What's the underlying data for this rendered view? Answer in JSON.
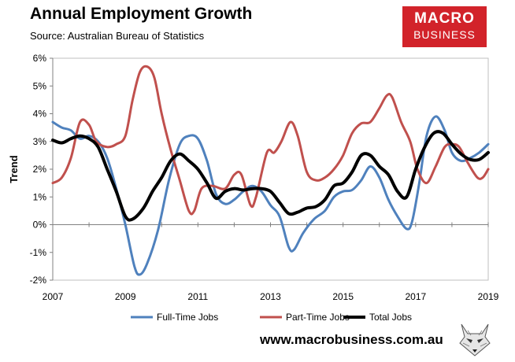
{
  "header": {
    "title": "Annual Employment Growth",
    "subtitle": "Source: Australian Bureau of Statistics",
    "logo_top": "MACRO",
    "logo_bottom": "BUSINESS"
  },
  "footer": {
    "url": "www.macrobusiness.com.au"
  },
  "colors": {
    "full_time": "#4f81bd",
    "part_time": "#c0504d",
    "total": "#000000",
    "logo_bg": "#d2232a"
  },
  "chart_data": {
    "type": "line",
    "title": "Annual Employment Growth",
    "subtitle": "Source: Australian Bureau of Statistics",
    "ylabel": "Trend",
    "xlabel": "",
    "xlim": [
      2007,
      2019
    ],
    "ylim": [
      -2,
      6
    ],
    "xticks": [
      "2007",
      "2009",
      "2011",
      "2013",
      "2015",
      "2017",
      "2019"
    ],
    "yticks": [
      "-2%",
      "-1%",
      "0%",
      "1%",
      "2%",
      "3%",
      "4%",
      "5%",
      "6%"
    ],
    "grid": "none",
    "legend_position": "bottom",
    "series": [
      {
        "name": "Full-Time Jobs",
        "color": "#4f81bd",
        "points": [
          [
            2007.0,
            3.7
          ],
          [
            2007.25,
            3.5
          ],
          [
            2007.5,
            3.4
          ],
          [
            2007.75,
            3.1
          ],
          [
            2008.0,
            3.2
          ],
          [
            2008.25,
            3.0
          ],
          [
            2008.5,
            2.4
          ],
          [
            2008.75,
            1.3
          ],
          [
            2009.0,
            0.0
          ],
          [
            2009.25,
            -1.5
          ],
          [
            2009.4,
            -1.8
          ],
          [
            2009.6,
            -1.4
          ],
          [
            2009.9,
            -0.2
          ],
          [
            2010.2,
            1.6
          ],
          [
            2010.5,
            2.9
          ],
          [
            2010.75,
            3.2
          ],
          [
            2011.0,
            3.1
          ],
          [
            2011.25,
            2.3
          ],
          [
            2011.5,
            1.1
          ],
          [
            2011.75,
            0.75
          ],
          [
            2012.0,
            0.9
          ],
          [
            2012.25,
            1.2
          ],
          [
            2012.5,
            1.4
          ],
          [
            2012.75,
            1.2
          ],
          [
            2013.0,
            0.7
          ],
          [
            2013.25,
            0.3
          ],
          [
            2013.5,
            -0.8
          ],
          [
            2013.65,
            -0.9
          ],
          [
            2013.9,
            -0.3
          ],
          [
            2014.2,
            0.2
          ],
          [
            2014.5,
            0.5
          ],
          [
            2014.75,
            1.0
          ],
          [
            2015.0,
            1.2
          ],
          [
            2015.25,
            1.25
          ],
          [
            2015.5,
            1.6
          ],
          [
            2015.75,
            2.1
          ],
          [
            2016.0,
            1.7
          ],
          [
            2016.25,
            0.9
          ],
          [
            2016.5,
            0.3
          ],
          [
            2016.75,
            -0.15
          ],
          [
            2016.9,
            0.1
          ],
          [
            2017.1,
            1.5
          ],
          [
            2017.3,
            3.2
          ],
          [
            2017.55,
            3.9
          ],
          [
            2017.8,
            3.4
          ],
          [
            2018.0,
            2.6
          ],
          [
            2018.25,
            2.3
          ],
          [
            2018.5,
            2.4
          ],
          [
            2018.75,
            2.6
          ],
          [
            2019.0,
            2.9
          ]
        ]
      },
      {
        "name": "Part-Time Jobs",
        "color": "#c0504d",
        "points": [
          [
            2007.0,
            1.5
          ],
          [
            2007.25,
            1.7
          ],
          [
            2007.5,
            2.4
          ],
          [
            2007.75,
            3.7
          ],
          [
            2008.0,
            3.6
          ],
          [
            2008.2,
            3.0
          ],
          [
            2008.5,
            2.8
          ],
          [
            2008.75,
            2.9
          ],
          [
            2009.0,
            3.2
          ],
          [
            2009.2,
            4.5
          ],
          [
            2009.4,
            5.5
          ],
          [
            2009.6,
            5.7
          ],
          [
            2009.8,
            5.3
          ],
          [
            2010.0,
            4.0
          ],
          [
            2010.25,
            2.7
          ],
          [
            2010.5,
            1.6
          ],
          [
            2010.75,
            0.5
          ],
          [
            2010.9,
            0.5
          ],
          [
            2011.1,
            1.3
          ],
          [
            2011.4,
            1.4
          ],
          [
            2011.75,
            1.3
          ],
          [
            2012.0,
            1.8
          ],
          [
            2012.2,
            1.8
          ],
          [
            2012.45,
            0.7
          ],
          [
            2012.6,
            1.0
          ],
          [
            2012.9,
            2.6
          ],
          [
            2013.1,
            2.6
          ],
          [
            2013.3,
            3.0
          ],
          [
            2013.55,
            3.7
          ],
          [
            2013.75,
            3.2
          ],
          [
            2014.0,
            1.9
          ],
          [
            2014.25,
            1.6
          ],
          [
            2014.5,
            1.7
          ],
          [
            2014.75,
            2.0
          ],
          [
            2015.0,
            2.5
          ],
          [
            2015.25,
            3.3
          ],
          [
            2015.5,
            3.65
          ],
          [
            2015.75,
            3.7
          ],
          [
            2016.0,
            4.2
          ],
          [
            2016.2,
            4.65
          ],
          [
            2016.35,
            4.6
          ],
          [
            2016.6,
            3.7
          ],
          [
            2016.85,
            3.0
          ],
          [
            2017.05,
            2.0
          ],
          [
            2017.3,
            1.5
          ],
          [
            2017.55,
            2.1
          ],
          [
            2017.8,
            2.8
          ],
          [
            2018.0,
            2.9
          ],
          [
            2018.2,
            2.8
          ],
          [
            2018.45,
            2.2
          ],
          [
            2018.7,
            1.7
          ],
          [
            2018.85,
            1.7
          ],
          [
            2019.0,
            2.0
          ]
        ]
      },
      {
        "name": "Total Jobs",
        "color": "#000000",
        "points": [
          [
            2007.0,
            3.05
          ],
          [
            2007.25,
            2.95
          ],
          [
            2007.5,
            3.1
          ],
          [
            2007.75,
            3.2
          ],
          [
            2008.0,
            3.1
          ],
          [
            2008.25,
            2.8
          ],
          [
            2008.5,
            2.0
          ],
          [
            2008.75,
            1.2
          ],
          [
            2009.0,
            0.3
          ],
          [
            2009.2,
            0.2
          ],
          [
            2009.5,
            0.6
          ],
          [
            2009.75,
            1.2
          ],
          [
            2010.0,
            1.7
          ],
          [
            2010.25,
            2.3
          ],
          [
            2010.5,
            2.55
          ],
          [
            2010.75,
            2.3
          ],
          [
            2011.0,
            2.0
          ],
          [
            2011.25,
            1.5
          ],
          [
            2011.5,
            0.95
          ],
          [
            2011.75,
            1.2
          ],
          [
            2012.0,
            1.3
          ],
          [
            2012.25,
            1.25
          ],
          [
            2012.5,
            1.3
          ],
          [
            2012.75,
            1.3
          ],
          [
            2013.0,
            1.2
          ],
          [
            2013.25,
            0.8
          ],
          [
            2013.5,
            0.4
          ],
          [
            2013.75,
            0.45
          ],
          [
            2014.0,
            0.6
          ],
          [
            2014.25,
            0.65
          ],
          [
            2014.5,
            0.9
          ],
          [
            2014.75,
            1.4
          ],
          [
            2015.0,
            1.5
          ],
          [
            2015.25,
            1.9
          ],
          [
            2015.5,
            2.5
          ],
          [
            2015.75,
            2.5
          ],
          [
            2016.0,
            2.1
          ],
          [
            2016.25,
            1.8
          ],
          [
            2016.5,
            1.2
          ],
          [
            2016.75,
            1.0
          ],
          [
            2017.0,
            2.0
          ],
          [
            2017.25,
            2.8
          ],
          [
            2017.5,
            3.3
          ],
          [
            2017.75,
            3.3
          ],
          [
            2018.0,
            2.9
          ],
          [
            2018.25,
            2.55
          ],
          [
            2018.5,
            2.35
          ],
          [
            2018.75,
            2.35
          ],
          [
            2019.0,
            2.6
          ]
        ]
      }
    ]
  }
}
